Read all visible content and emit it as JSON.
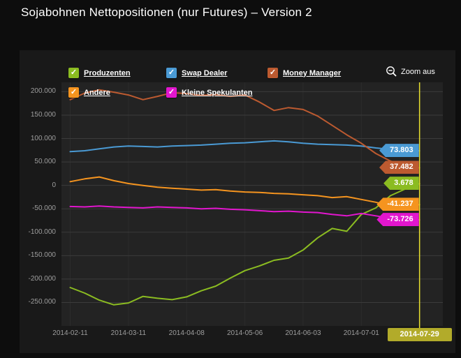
{
  "title": "Sojabohnen Nettopositionen (nur Futures) – Version 2",
  "zoom_button": {
    "label": "Zoom aus"
  },
  "crosshair": {
    "date_label": "2014-07-29",
    "line_color": "#e7df2f",
    "box_color": "#b2ab2a"
  },
  "colors": {
    "page_bg": "#0d0d0d",
    "card_bg": "#191919",
    "plot_bg": "#232323",
    "grid_h": "#3b3b3b",
    "grid_v": "#2c2c2c",
    "axis_label": "#9e9e9e"
  },
  "legend": {
    "items": [
      {
        "label": "Produzenten",
        "color": "#8bbc21"
      },
      {
        "label": "Swap Dealer",
        "color": "#4a9ad4"
      },
      {
        "label": "Money Manager",
        "color": "#bc5a30"
      },
      {
        "label": "Andere",
        "color": "#f5941f"
      },
      {
        "label": "Kleine Spekulanten",
        "color": "#e216ce"
      }
    ]
  },
  "chart_data": {
    "type": "line",
    "title": "Sojabohnen Nettopositionen (nur Futures) – Version 2",
    "xlabel": "",
    "ylabel": "",
    "grid": true,
    "legend_position": "top",
    "ylim": [
      -300000,
      220000
    ],
    "y_ticks": [
      200000,
      150000,
      100000,
      50000,
      0,
      -50000,
      -100000,
      -150000,
      -200000,
      -250000
    ],
    "y_tick_labels": [
      "200.000",
      "150.000",
      "100.000",
      "50.000",
      "0",
      "-50.000",
      "-100.000",
      "-150.000",
      "-200.000",
      "-250.000"
    ],
    "x": [
      "2014-02-11",
      "2014-02-18",
      "2014-02-25",
      "2014-03-04",
      "2014-03-11",
      "2014-03-18",
      "2014-03-25",
      "2014-04-01",
      "2014-04-08",
      "2014-04-15",
      "2014-04-22",
      "2014-04-29",
      "2014-05-06",
      "2014-05-13",
      "2014-05-20",
      "2014-05-27",
      "2014-06-03",
      "2014-06-10",
      "2014-06-17",
      "2014-06-24",
      "2014-07-01",
      "2014-07-08",
      "2014-07-15",
      "2014-07-22",
      "2014-07-29"
    ],
    "x_tick_weeks": [
      0,
      4,
      8,
      12,
      16,
      20,
      24
    ],
    "x_tick_labels": [
      "2014-02-11",
      "2014-03-11",
      "2014-04-08",
      "2014-05-06",
      "2014-06-03",
      "2014-07-01",
      "2014-07-29"
    ],
    "series": [
      {
        "name": "Produzenten",
        "color": "#8bbc21",
        "last_label": "3.678",
        "values": [
          -218000,
          -230000,
          -245000,
          -255000,
          -251000,
          -237000,
          -241000,
          -244000,
          -238000,
          -225000,
          -215000,
          -198000,
          -182000,
          -172000,
          -160000,
          -155000,
          -138000,
          -112000,
          -92000,
          -98000,
          -62000,
          -48000,
          -22000,
          -8000,
          3678
        ]
      },
      {
        "name": "Swap Dealer",
        "color": "#4a9ad4",
        "last_label": "73.803",
        "values": [
          72000,
          74000,
          78000,
          82000,
          84000,
          83000,
          82000,
          84000,
          85000,
          86000,
          88000,
          90000,
          91000,
          93000,
          95000,
          93000,
          90000,
          88000,
          87000,
          86000,
          84000,
          80000,
          77000,
          75000,
          73803
        ]
      },
      {
        "name": "Money Manager",
        "color": "#bc5a30",
        "last_label": "37.482",
        "values": [
          183000,
          197000,
          204000,
          199000,
          193000,
          183000,
          190000,
          198000,
          196000,
          192000,
          194000,
          190000,
          193000,
          178000,
          160000,
          166000,
          162000,
          148000,
          128000,
          108000,
          90000,
          68000,
          52000,
          42000,
          37482
        ]
      },
      {
        "name": "Andere",
        "color": "#f5941f",
        "last_label": "-41.237",
        "values": [
          8000,
          14000,
          18000,
          10000,
          4000,
          0,
          -4000,
          -6000,
          -8000,
          -10000,
          -9000,
          -12000,
          -14000,
          -15000,
          -17000,
          -18000,
          -20000,
          -22000,
          -26000,
          -24000,
          -30000,
          -36000,
          -44000,
          -43000,
          -41237
        ]
      },
      {
        "name": "Kleine Spekulanten",
        "color": "#e216ce",
        "last_label": "-73.726",
        "values": [
          -45000,
          -46000,
          -44000,
          -46000,
          -47000,
          -48000,
          -46000,
          -47000,
          -48000,
          -50000,
          -49000,
          -51000,
          -52000,
          -54000,
          -56000,
          -55000,
          -57000,
          -58000,
          -62000,
          -65000,
          -60000,
          -65000,
          -70000,
          -72000,
          -73726
        ]
      }
    ]
  }
}
